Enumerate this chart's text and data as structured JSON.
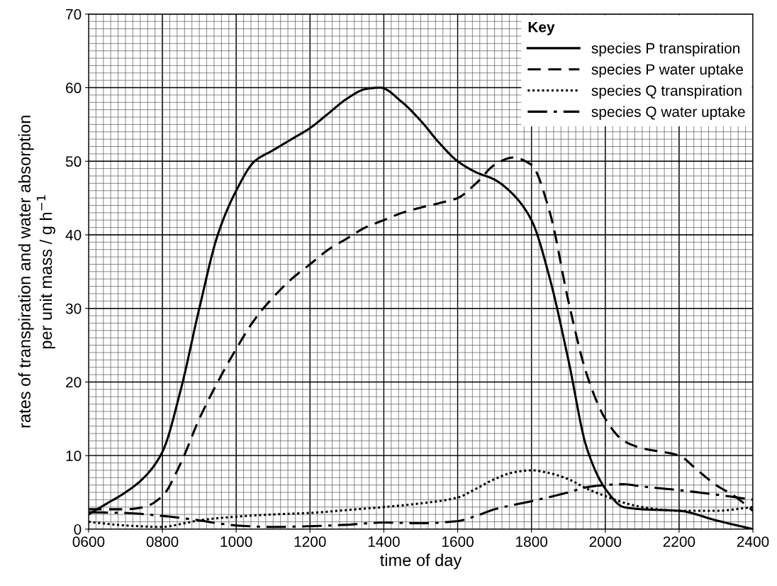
{
  "chart_data": {
    "type": "line",
    "xlabel": "time of day",
    "ylabel": "rates of transpiration and water absorption\nper unit mass / g h$^{−1}$",
    "legend_title": "Key",
    "legend": "top right",
    "grid": true,
    "xlim": [
      600,
      2400
    ],
    "xticks": [
      {
        "value": 600,
        "label": "0600"
      },
      {
        "value": 800,
        "label": "0800"
      },
      1000,
      1200,
      1400,
      1600,
      1800,
      2000,
      2200,
      2400
    ],
    "ylim": [
      0,
      70
    ],
    "yticks": [
      0,
      10,
      20,
      30,
      40,
      50,
      60,
      70
    ],
    "series": [
      {
        "name": "species P transpiration",
        "color": "#000000",
        "line_style": "solid",
        "x": [
          600,
          650,
          700,
          750,
          800,
          850,
          900,
          950,
          1000,
          1050,
          1100,
          1150,
          1200,
          1250,
          1300,
          1350,
          1390,
          1450,
          1500,
          1550,
          1600,
          1650,
          1700,
          1750,
          1800,
          1850,
          1900,
          1950,
          2000,
          2050,
          2100,
          2200,
          2300,
          2400
        ],
        "values": [
          2,
          3.5,
          5,
          7,
          10.5,
          19,
          30,
          40,
          46,
          50,
          51.5,
          53,
          54.5,
          56.5,
          58.5,
          59.8,
          60,
          58,
          55.5,
          52.5,
          50,
          48.5,
          47.5,
          45.5,
          42,
          34,
          23,
          11,
          5.5,
          3,
          2.7,
          2.5,
          1.2,
          0
        ]
      },
      {
        "name": "species P water uptake",
        "color": "#000000",
        "line_style": "dashed",
        "x": [
          600,
          700,
          750,
          800,
          850,
          900,
          950,
          1000,
          1050,
          1100,
          1150,
          1200,
          1250,
          1300,
          1350,
          1400,
          1450,
          1500,
          1550,
          1600,
          1650,
          1700,
          1750,
          1800,
          1850,
          1900,
          1950,
          2000,
          2050,
          2100,
          2200,
          2250,
          2300,
          2350,
          2400
        ],
        "values": [
          2.7,
          2.7,
          3,
          4.5,
          9,
          15,
          20,
          24.5,
          28.5,
          31.5,
          34,
          36,
          38,
          39.5,
          41,
          42,
          43,
          43.7,
          44.3,
          45,
          47,
          49.5,
          50.5,
          49.5,
          43,
          31,
          21,
          15,
          12,
          11,
          10,
          8,
          6,
          4.5,
          2.5
        ]
      },
      {
        "name": "species Q transpiration",
        "color": "#000000",
        "line_style": "dotted",
        "x": [
          600,
          700,
          800,
          850,
          900,
          1000,
          1100,
          1200,
          1300,
          1400,
          1500,
          1600,
          1650,
          1700,
          1750,
          1800,
          1850,
          1900,
          1950,
          2000,
          2050,
          2100,
          2200,
          2300,
          2400
        ],
        "values": [
          1,
          0.5,
          0.3,
          0.7,
          1.2,
          1.7,
          2,
          2.2,
          2.6,
          3,
          3.5,
          4.3,
          5.5,
          6.8,
          7.7,
          8,
          7.6,
          6.8,
          5.5,
          4.5,
          3.6,
          3,
          2.5,
          2.5,
          3
        ]
      },
      {
        "name": "species Q water uptake",
        "color": "#000000",
        "line_style": "dashdot",
        "x": [
          600,
          700,
          800,
          900,
          950,
          1000,
          1100,
          1200,
          1300,
          1400,
          1500,
          1600,
          1650,
          1700,
          1800,
          1900,
          1950,
          2000,
          2050,
          2100,
          2200,
          2300,
          2400
        ],
        "values": [
          2.3,
          2.2,
          1.8,
          1.2,
          0.8,
          0.5,
          0.3,
          0.4,
          0.6,
          0.9,
          0.8,
          1.1,
          1.8,
          2.7,
          3.8,
          5,
          5.7,
          6,
          6.1,
          5.8,
          5.3,
          4.7,
          4
        ]
      }
    ]
  }
}
